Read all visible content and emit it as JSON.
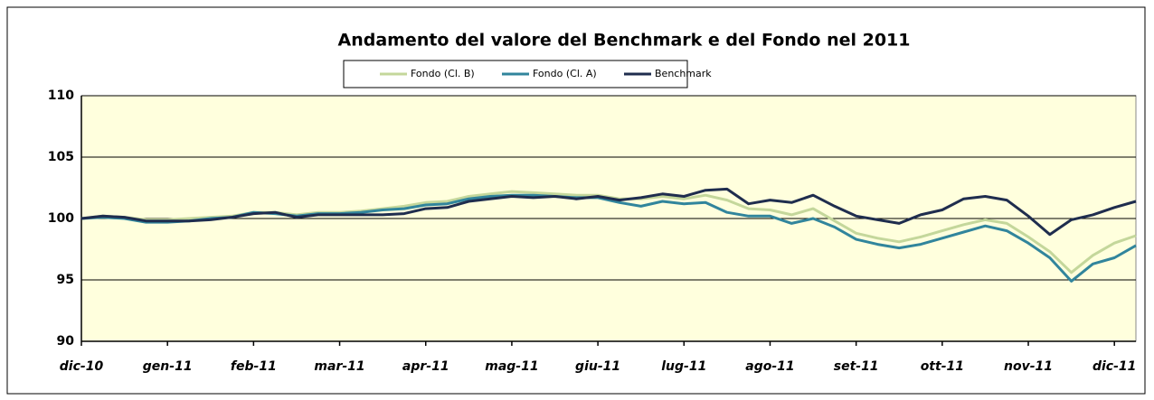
{
  "chart_data": {
    "type": "line",
    "title": "Andamento del valore del Benchmark e del Fondo nel 2011",
    "x": [
      "dic-10",
      null,
      null,
      null,
      "gen-11",
      null,
      null,
      null,
      "feb-11",
      null,
      null,
      null,
      "mar-11",
      null,
      null,
      null,
      "apr-11",
      null,
      null,
      null,
      "mag-11",
      null,
      null,
      null,
      "giu-11",
      null,
      null,
      null,
      "lug-11",
      null,
      null,
      null,
      "ago-11",
      null,
      null,
      null,
      "set-11",
      null,
      null,
      null,
      "ott-11",
      null,
      null,
      null,
      "nov-11",
      null,
      null,
      null,
      "dic-11",
      null
    ],
    "series": [
      {
        "name": "Fondo (Cl. B)",
        "color": "#c4d79b",
        "values": [
          100,
          100.2,
          100.1,
          99.9,
          99.9,
          100,
          100.1,
          100.2,
          100.5,
          100.5,
          100.3,
          100.5,
          100.5,
          100.6,
          100.8,
          101,
          101.3,
          101.4,
          101.8,
          102,
          102.2,
          102.1,
          102,
          101.9,
          101.9,
          101.6,
          101.6,
          101.8,
          101.6,
          101.9,
          101.5,
          100.8,
          100.7,
          100.3,
          100.8,
          99.8,
          98.8,
          98.4,
          98.1,
          98.5,
          99,
          99.5,
          99.9,
          99.6,
          98.5,
          97.3,
          95.6,
          97,
          98,
          98.6
        ]
      },
      {
        "name": "Fondo (Cl. A)",
        "color": "#31859c",
        "values": [
          100,
          100.1,
          100,
          99.7,
          99.7,
          99.8,
          100,
          100.1,
          100.5,
          100.4,
          100.2,
          100.4,
          100.4,
          100.5,
          100.7,
          100.8,
          101.1,
          101.2,
          101.6,
          101.8,
          101.9,
          101.9,
          101.8,
          101.7,
          101.7,
          101.3,
          101,
          101.4,
          101.2,
          101.3,
          100.5,
          100.2,
          100.2,
          99.6,
          100,
          99.3,
          98.3,
          97.9,
          97.6,
          97.9,
          98.4,
          98.9,
          99.4,
          99,
          98,
          96.8,
          94.9,
          96.3,
          96.8,
          97.8
        ]
      },
      {
        "name": "Benchmark",
        "color": "#1f2d4e",
        "values": [
          100,
          100.2,
          100.1,
          99.8,
          99.8,
          99.8,
          99.9,
          100.1,
          100.4,
          100.5,
          100.1,
          100.3,
          100.3,
          100.3,
          100.3,
          100.4,
          100.8,
          100.9,
          101.4,
          101.6,
          101.8,
          101.7,
          101.8,
          101.6,
          101.8,
          101.5,
          101.7,
          102,
          101.8,
          102.3,
          102.4,
          101.2,
          101.5,
          101.3,
          101.9,
          101,
          100.2,
          99.9,
          99.6,
          100.3,
          100.7,
          101.6,
          101.8,
          101.5,
          100.2,
          98.7,
          99.9,
          100.3,
          100.9,
          101.4
        ]
      }
    ],
    "ylim": [
      90,
      110
    ],
    "yticks": [
      90,
      95,
      100,
      105,
      110
    ],
    "grid": true
  }
}
